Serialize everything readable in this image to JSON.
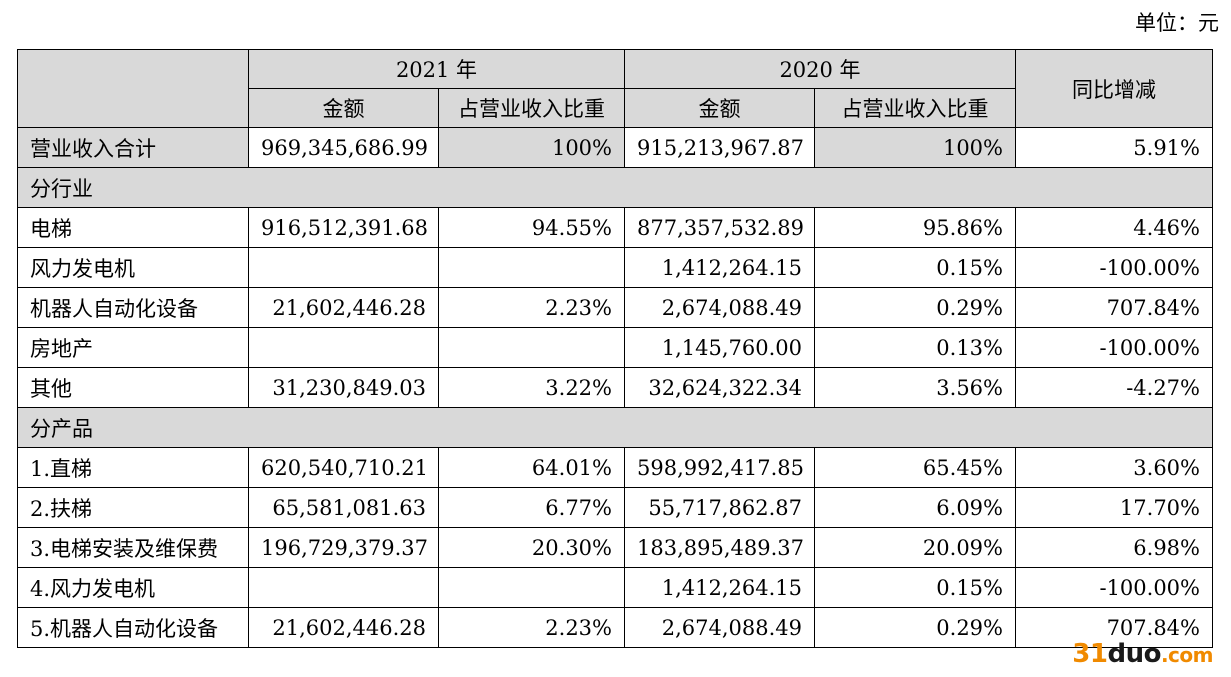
{
  "unit_label": "单位：元",
  "headers": {
    "year_2021": "2021 年",
    "year_2020": "2020 年",
    "yoy": "同比增减",
    "amount": "金额",
    "share": "占营业收入比重"
  },
  "total": {
    "label": "营业收入合计",
    "a2021": "969,345,686.99",
    "s2021": "100%",
    "a2020": "915,213,967.87",
    "s2020": "100%",
    "yoy": "5.91%"
  },
  "sections": [
    {
      "title": "分行业",
      "rows": [
        {
          "label": "电梯",
          "a2021": "916,512,391.68",
          "s2021": "94.55%",
          "a2020": "877,357,532.89",
          "s2020": "95.86%",
          "yoy": "4.46%"
        },
        {
          "label": "风力发电机",
          "a2021": "",
          "s2021": "",
          "a2020": "1,412,264.15",
          "s2020": "0.15%",
          "yoy": "-100.00%"
        },
        {
          "label": "机器人自动化设备",
          "a2021": "21,602,446.28",
          "s2021": "2.23%",
          "a2020": "2,674,088.49",
          "s2020": "0.29%",
          "yoy": "707.84%"
        },
        {
          "label": "房地产",
          "a2021": "",
          "s2021": "",
          "a2020": "1,145,760.00",
          "s2020": "0.13%",
          "yoy": "-100.00%"
        },
        {
          "label": "其他",
          "a2021": "31,230,849.03",
          "s2021": "3.22%",
          "a2020": "32,624,322.34",
          "s2020": "3.56%",
          "yoy": "-4.27%"
        }
      ]
    },
    {
      "title": "分产品",
      "rows": [
        {
          "label": "1.直梯",
          "a2021": "620,540,710.21",
          "s2021": "64.01%",
          "a2020": "598,992,417.85",
          "s2020": "65.45%",
          "yoy": "3.60%"
        },
        {
          "label": "2.扶梯",
          "a2021": "65,581,081.63",
          "s2021": "6.77%",
          "a2020": "55,717,862.87",
          "s2020": "6.09%",
          "yoy": "17.70%"
        },
        {
          "label": "3.电梯安装及维保费",
          "a2021": "196,729,379.37",
          "s2021": "20.30%",
          "a2020": "183,895,489.37",
          "s2020": "20.09%",
          "yoy": "6.98%"
        },
        {
          "label": "4.风力发电机",
          "a2021": "",
          "s2021": "",
          "a2020": "1,412,264.15",
          "s2020": "0.15%",
          "yoy": "-100.00%"
        },
        {
          "label": "5.机器人自动化设备",
          "a2021": "21,602,446.28",
          "s2021": "2.23%",
          "a2020": "2,674,088.49",
          "s2020": "0.29%",
          "yoy": "707.84%"
        }
      ]
    }
  ],
  "watermark": {
    "part1": "31",
    "part2": "duo",
    "part3": ".com"
  }
}
